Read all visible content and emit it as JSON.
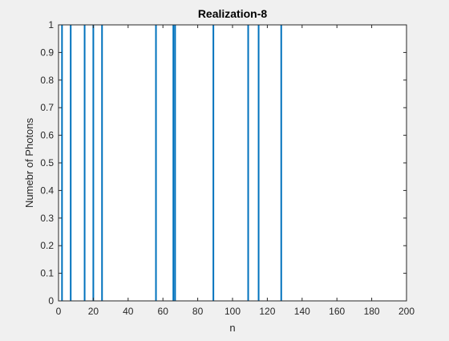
{
  "chart_data": {
    "type": "stem",
    "title": "Realization-8",
    "xlabel": "n",
    "ylabel": "Numebr of Photons",
    "xlim": [
      0,
      200
    ],
    "ylim": [
      0,
      1
    ],
    "xticks": [
      "0",
      "20",
      "40",
      "60",
      "80",
      "100",
      "120",
      "140",
      "160",
      "180",
      "200"
    ],
    "yticks": [
      "0",
      "0.1",
      "0.2",
      "0.3",
      "0.4",
      "0.5",
      "0.6",
      "0.7",
      "0.8",
      "0.9",
      "1"
    ],
    "grid": false,
    "series_color": "#0072BD",
    "x": [
      2,
      7,
      15,
      20,
      25,
      56,
      66,
      67,
      89,
      109,
      115,
      128
    ],
    "y": [
      1,
      1,
      1,
      1,
      1,
      1,
      1,
      1,
      1,
      1,
      1,
      1
    ]
  }
}
